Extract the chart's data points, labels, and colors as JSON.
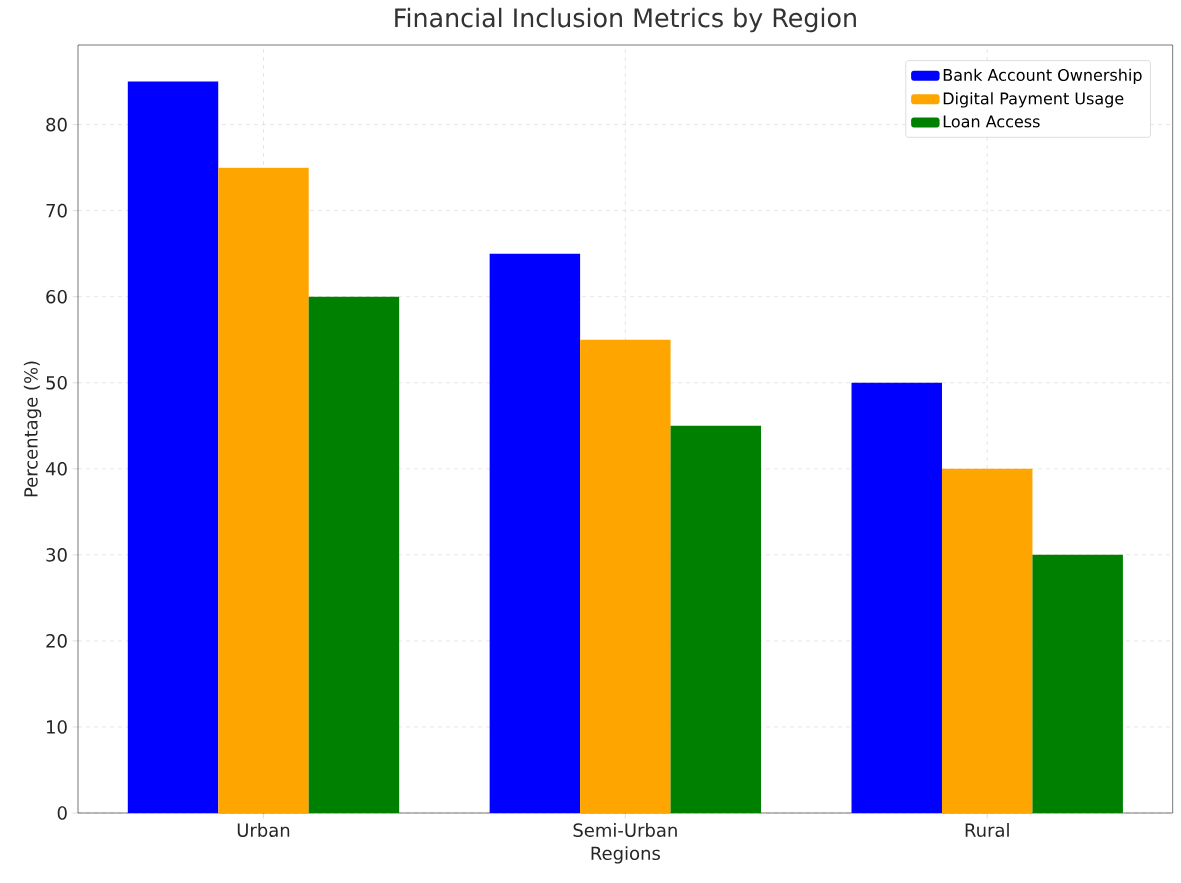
{
  "chart_data": {
    "type": "bar",
    "title": "Financial Inclusion Metrics by Region",
    "xlabel": "Regions",
    "ylabel": "Percentage (%)",
    "categories": [
      "Urban",
      "Semi-Urban",
      "Rural"
    ],
    "series": [
      {
        "name": "Bank Account Ownership",
        "color": "#0000ff",
        "values": [
          85,
          65,
          50
        ]
      },
      {
        "name": "Digital Payment Usage",
        "color": "#ffa500",
        "values": [
          75,
          55,
          40
        ]
      },
      {
        "name": "Loan Access",
        "color": "#008000",
        "values": [
          60,
          45,
          30
        ]
      }
    ],
    "ylim": [
      0,
      89.25
    ],
    "yticks": [
      0,
      10,
      20,
      30,
      40,
      50,
      60,
      70,
      80
    ],
    "grid": true,
    "legend": "top right"
  }
}
